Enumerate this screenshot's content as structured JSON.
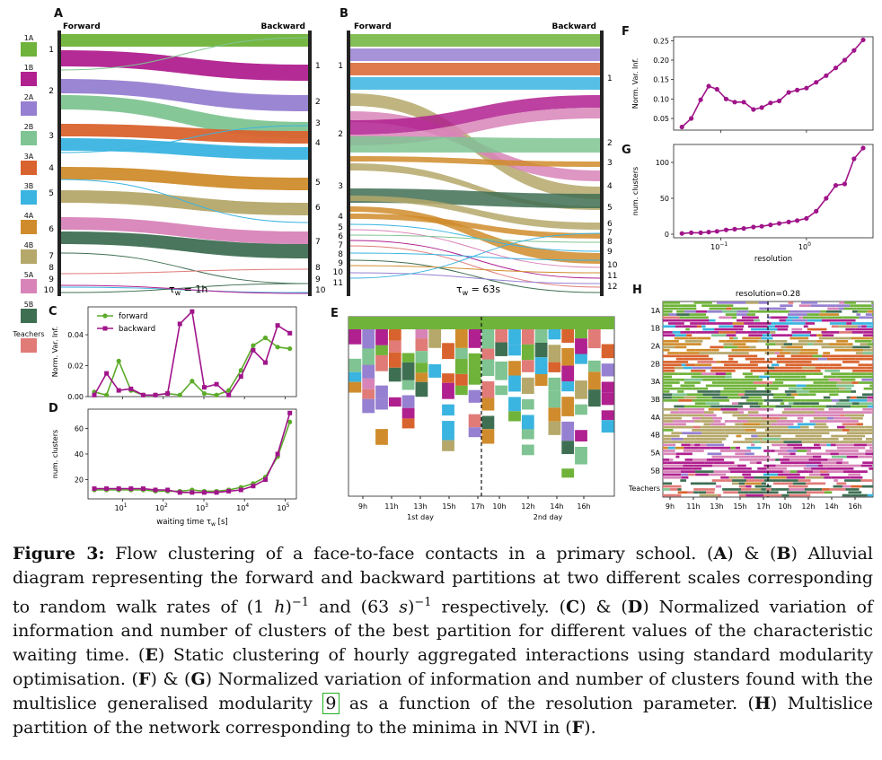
{
  "colors": {
    "1A": "#6fb33a",
    "1B": "#b0208f",
    "2A": "#9680d1",
    "2B": "#7fc492",
    "3A": "#d9632e",
    "3B": "#3ab4e0",
    "4A": "#d08c2c",
    "4B": "#b5a86a",
    "5A": "#d884b8",
    "5B": "#3f6f53",
    "Teachers": "#e07b78",
    "forward": "#5cab2a",
    "backward": "#a0148a"
  },
  "legend": [
    {
      "label": "1A",
      "color": "#6fb33a"
    },
    {
      "label": "1B",
      "color": "#b0208f"
    },
    {
      "label": "2A",
      "color": "#9680d1"
    },
    {
      "label": "2B",
      "color": "#7fc492"
    },
    {
      "label": "3A",
      "color": "#d9632e"
    },
    {
      "label": "3B",
      "color": "#3ab4e0"
    },
    {
      "label": "4A",
      "color": "#d08c2c"
    },
    {
      "label": "4B",
      "color": "#b5a86a"
    },
    {
      "label": "5A",
      "color": "#d884b8"
    },
    {
      "label": "5B",
      "color": "#3f6f53"
    },
    {
      "label": "Teachers",
      "color": "#e07b78"
    }
  ],
  "panels": {
    "A": {
      "letter": "A",
      "forward": "Forward",
      "backward": "Backward",
      "tau": "τ",
      "tau_sub": "w",
      "tau_val": "= 1h",
      "left_labels": [
        "1",
        "2",
        "3",
        "4",
        "5",
        "6",
        "7",
        "8",
        "9",
        "10"
      ],
      "right_labels": [
        "1",
        "2",
        "3",
        "4",
        "5",
        "6",
        "7",
        "8",
        "9",
        "10"
      ]
    },
    "B": {
      "letter": "B",
      "forward": "Forward",
      "backward": "Backward",
      "tau": "τ",
      "tau_sub": "w",
      "tau_val": "= 63s",
      "left_labels": [
        "1",
        "2",
        "3",
        "4",
        "5",
        "6",
        "7",
        "8",
        "9",
        "10",
        "11"
      ],
      "right_labels": [
        "1",
        "2",
        "3",
        "4",
        "5",
        "6",
        "7",
        "8",
        "9",
        "10",
        "11",
        "12"
      ]
    },
    "C": {
      "letter": "C",
      "ylabel": "Norm. Var. Inf.",
      "yticks": [
        "0.00",
        "0.02",
        "0.04"
      ],
      "legend_forward": "forward",
      "legend_backward": "backward"
    },
    "D": {
      "letter": "D",
      "ylabel": "num. clusters",
      "yticks": [
        "20",
        "40",
        "60"
      ],
      "xticks": [
        "10",
        "10",
        "10",
        "10",
        "10"
      ],
      "xtick_exp": [
        "1",
        "2",
        "3",
        "4",
        "5"
      ],
      "xlabel": "waiting time τ",
      "xlabel_sub": "w",
      "xlabel_unit": " [s]"
    },
    "E": {
      "letter": "E",
      "xticks": [
        "9h",
        "11h",
        "13h",
        "15h",
        "17h",
        "10h",
        "12h",
        "14h",
        "16h"
      ],
      "day1": "1st day",
      "day2": "2nd day"
    },
    "F": {
      "letter": "F",
      "ylabel": "Norm. Var. Inf.",
      "yticks": [
        "0.05",
        "0.10",
        "0.15",
        "0.20",
        "0.25"
      ]
    },
    "G": {
      "letter": "G",
      "ylabel": "num. clusters",
      "yticks": [
        "0",
        "50",
        "100"
      ],
      "xticks": [
        "10",
        "10"
      ],
      "xtick_exp": [
        "−1",
        "0"
      ],
      "xlabel": "resolution"
    },
    "H": {
      "letter": "H",
      "title": "resolution=0.28",
      "ylabels": [
        "1A",
        "1B",
        "2A",
        "2B",
        "3A",
        "3B",
        "4A",
        "4B",
        "5A",
        "5B",
        "Teachers"
      ],
      "xticks": [
        "9h",
        "11h",
        "13h",
        "15h",
        "17h",
        "10h",
        "12h",
        "14h",
        "16h"
      ]
    }
  },
  "chart_data": [
    {
      "panel": "C",
      "type": "line",
      "x_scale": "log",
      "title": "",
      "xlabel": "",
      "ylabel": "Norm. Var. Inf.",
      "ylim": [
        0,
        0.058
      ],
      "x": [
        2,
        4,
        8,
        16,
        32,
        64,
        128,
        256,
        512,
        1024,
        2048,
        4096,
        8192,
        16384,
        32768,
        65536,
        131072
      ],
      "series": [
        {
          "name": "forward",
          "values": [
            0.003,
            0.001,
            0.023,
            0.004,
            0.001,
            0.001,
            0.002,
            0.001,
            0.01,
            0.002,
            0.001,
            0.004,
            0.017,
            0.033,
            0.038,
            0.032,
            0.031
          ]
        },
        {
          "name": "backward",
          "values": [
            0.001,
            0.015,
            0.004,
            0.005,
            0.001,
            0.001,
            0.002,
            0.047,
            0.055,
            0.006,
            0.008,
            0.001,
            0.013,
            0.03,
            0.022,
            0.046,
            0.041
          ]
        }
      ]
    },
    {
      "panel": "D",
      "type": "line",
      "x_scale": "log",
      "title": "",
      "xlabel": "waiting time τw [s]",
      "ylabel": "num. clusters",
      "ylim": [
        5,
        75
      ],
      "x": [
        2,
        4,
        8,
        16,
        32,
        64,
        128,
        256,
        512,
        1024,
        2048,
        4096,
        8192,
        16384,
        32768,
        65536,
        131072
      ],
      "series": [
        {
          "name": "forward",
          "values": [
            12,
            12,
            12,
            12,
            12,
            11,
            11,
            11,
            12,
            11,
            11,
            12,
            14,
            17,
            22,
            38,
            65
          ]
        },
        {
          "name": "backward",
          "values": [
            13,
            13,
            13,
            13,
            13,
            12,
            12,
            10,
            10,
            10,
            10,
            11,
            12,
            15,
            20,
            40,
            72
          ]
        }
      ]
    },
    {
      "panel": "F",
      "type": "line",
      "x_scale": "log",
      "title": "",
      "xlabel": "",
      "ylabel": "Norm. Var. Inf.",
      "ylim": [
        0.02,
        0.26
      ],
      "x": [
        0.035,
        0.045,
        0.058,
        0.072,
        0.09,
        0.115,
        0.145,
        0.185,
        0.24,
        0.3,
        0.38,
        0.48,
        0.62,
        0.78,
        1.0,
        1.3,
        1.7,
        2.2,
        2.8,
        3.6,
        4.6
      ],
      "values": [
        0.028,
        0.05,
        0.098,
        0.133,
        0.125,
        0.1,
        0.092,
        0.092,
        0.073,
        0.078,
        0.09,
        0.095,
        0.117,
        0.123,
        0.128,
        0.143,
        0.16,
        0.18,
        0.2,
        0.225,
        0.252
      ]
    },
    {
      "panel": "G",
      "type": "line",
      "x_scale": "log",
      "title": "",
      "xlabel": "resolution",
      "ylabel": "num. clusters",
      "ylim": [
        -5,
        125
      ],
      "x": [
        0.035,
        0.045,
        0.058,
        0.072,
        0.09,
        0.115,
        0.145,
        0.185,
        0.24,
        0.3,
        0.38,
        0.48,
        0.62,
        0.78,
        1.0,
        1.3,
        1.7,
        2.2,
        2.8,
        3.6,
        4.6
      ],
      "values": [
        1,
        2,
        2,
        3,
        4,
        6,
        7,
        8,
        10,
        11,
        13,
        15,
        17,
        19,
        22,
        32,
        50,
        68,
        70,
        105,
        120
      ]
    }
  ],
  "caption": {
    "fig_label": "Figure 3:",
    "text1": " Flow clustering of a face-to-face contacts in a primary school. (",
    "A": "A",
    "amp1": ") & (",
    "B": "B",
    "text2": ") Alluvial diagram representing the forward and backward partitions at two different scales corresponding to random walk rates of (1 ",
    "h": "h",
    "text3": ")",
    "m1": "−1",
    "text4": " and (63 ",
    "s": "s",
    "text5": ")",
    "m2": "−1",
    "text6": " respectively. (",
    "C": "C",
    "amp2": ") & (",
    "D": "D",
    "text7": ") Normalized variation of information and number of clusters of the best partition for different values of the characteristic waiting time. (",
    "E": "E",
    "text8": ") Static clustering of hourly aggregated interactions using standard modularity optimisation. (",
    "F": "F",
    "amp3": ") & (",
    "G": "G",
    "text9": ") Normalized variation of information and number of clusters found with the multislice generalised modularity ",
    "ref": "9",
    "text10": " as a function of the resolution parameter. (",
    "H": "H",
    "text11": ") Multislice partition of the network corresponding to the minima in NVI in (",
    "F2": "F",
    "text12": ")."
  }
}
